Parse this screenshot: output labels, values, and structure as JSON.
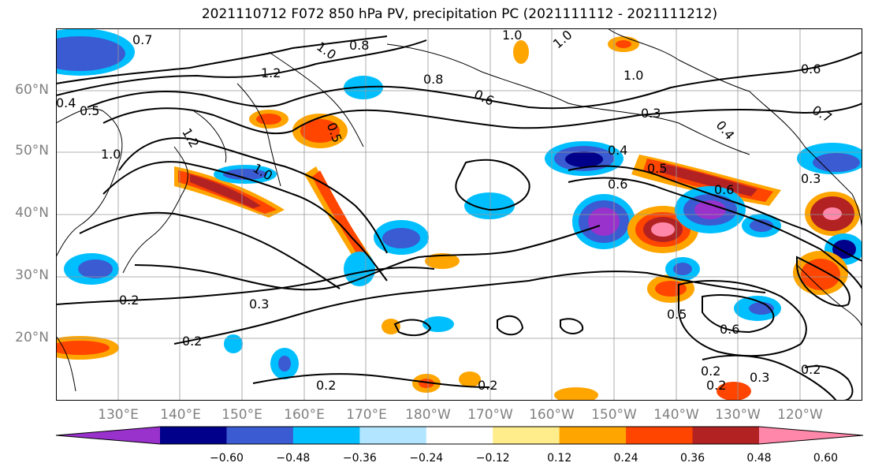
{
  "title": "2021110712 F072 850 hPa PV, precipitation PC (2021111112 - 2021111212)",
  "lat_labels": [
    "60°N",
    "50°N",
    "40°N",
    "30°N",
    "20°N"
  ],
  "lon_labels": [
    "130°E",
    "140°E",
    "150°E",
    "160°E",
    "170°E",
    "180°W",
    "170°W",
    "160°W",
    "150°W",
    "140°W",
    "130°W",
    "120°W"
  ],
  "contour_labels": [
    "0.7",
    "1.0",
    "0.8",
    "1.0",
    "1.0",
    "1.2",
    "1.0",
    "0.8",
    "0.6",
    "0.4",
    "0.5",
    "1.0",
    "1.2",
    "0.5",
    "1.0",
    "0.3",
    "0.4",
    "0.5",
    "0.6",
    "0.6",
    "0.3",
    "0.2",
    "0.3",
    "0.2",
    "0.2",
    "0.5",
    "0.6",
    "0.2",
    "0.2",
    "0.3",
    "0.2",
    "0.2",
    "0.6",
    "0.4",
    "0.7"
  ],
  "colorbar": {
    "colors": [
      "#9932cc",
      "#00008b",
      "#3a5bd1",
      "#00bfff",
      "#b2e5ff",
      "#ffffff",
      "#ffec8b",
      "#ffa500",
      "#ff4500",
      "#b22222",
      "#ff88aa"
    ],
    "tick_labels": [
      "−0.60",
      "−0.48",
      "−0.36",
      "−0.24",
      "−0.12",
      "0.12",
      "0.24",
      "0.36",
      "0.48",
      "0.60"
    ]
  }
}
